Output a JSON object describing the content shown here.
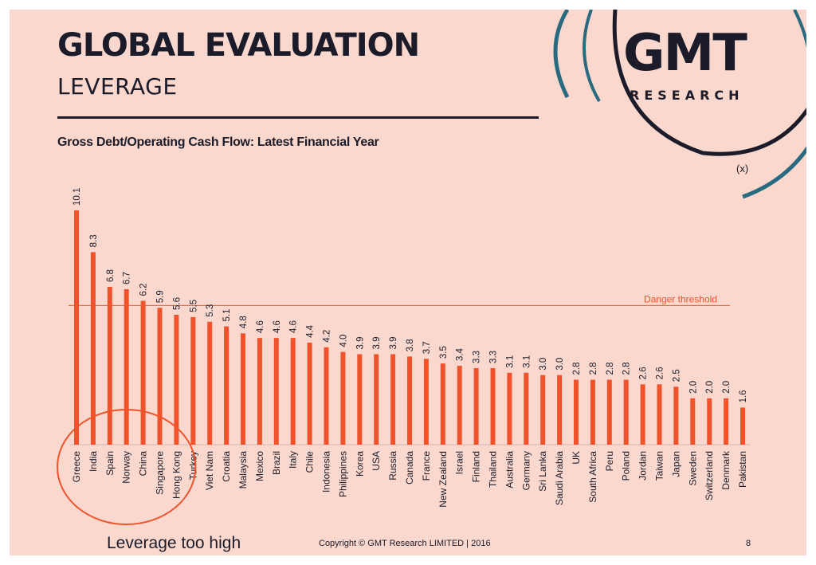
{
  "header": {
    "title": "GLOBAL EVALUATION",
    "subtitle": "LEVERAGE"
  },
  "logo": {
    "name": "GMT",
    "tagline": "RESEARCH"
  },
  "footer": {
    "note": "Leverage too high",
    "copyright": "Copyright © GMT Research LIMITED  |  2016",
    "page_number": "8"
  },
  "colors": {
    "bar": "#f0532c",
    "background": "#fbd8cd",
    "text": "#1b1b2a",
    "logo_ring": "#2a6a80"
  },
  "chart_data": {
    "type": "bar",
    "title": "Gross Debt/Operating Cash Flow: Latest Financial Year",
    "unit": "(x)",
    "categories": [
      "Greece",
      "India",
      "Spain",
      "Norway",
      "China",
      "Singapore",
      "Hong Kong",
      "Turkey",
      "Viet Nam",
      "Croatia",
      "Malaysia",
      "Mexico",
      "Brazil",
      "Italy",
      "Chile",
      "Indonesia",
      "Philippines",
      "Korea",
      "USA",
      "Russia",
      "Canada",
      "France",
      "New Zealand",
      "Israel",
      "Finland",
      "Thailand",
      "Australia",
      "Germany",
      "Sri Lanka",
      "Saudi Arabia",
      "UK",
      "South Africa",
      "Peru",
      "Poland",
      "Jordan",
      "Taiwan",
      "Japan",
      "Sweden",
      "Switzerland",
      "Denmark",
      "Pakistan"
    ],
    "values": [
      10.1,
      8.3,
      6.8,
      6.7,
      6.2,
      5.9,
      5.6,
      5.5,
      5.3,
      5.1,
      4.8,
      4.6,
      4.6,
      4.6,
      4.4,
      4.2,
      4.0,
      3.9,
      3.9,
      3.9,
      3.8,
      3.7,
      3.5,
      3.4,
      3.3,
      3.3,
      3.1,
      3.1,
      3.0,
      3.0,
      2.8,
      2.8,
      2.8,
      2.8,
      2.6,
      2.6,
      2.5,
      2.0,
      2.0,
      2.0,
      1.6
    ],
    "value_labels": [
      "10.1",
      "8.3",
      "6.8",
      "6.7",
      "6.2",
      "5.9",
      "5.6",
      "5.5",
      "5.3",
      "5.1",
      "4.8",
      "4.6",
      "4.6",
      "4.6",
      "4.4",
      "4.2",
      "4.0",
      "3.9",
      "3.9",
      "3.9",
      "3.8",
      "3.7",
      "3.5",
      "3.4",
      "3.3",
      "3.3",
      "3.1",
      "3.1",
      "3.0",
      "3.0",
      "2.8",
      "2.8",
      "2.8",
      "2.8",
      "2.6",
      "2.6",
      "2.5",
      "2.0",
      "2.0",
      "2.0",
      "1.6"
    ],
    "threshold": {
      "label": "Danger threshold",
      "value": 6.0
    },
    "highlight": {
      "label": "Leverage too high",
      "count": 7
    },
    "ylim": [
      0,
      10.5
    ]
  }
}
